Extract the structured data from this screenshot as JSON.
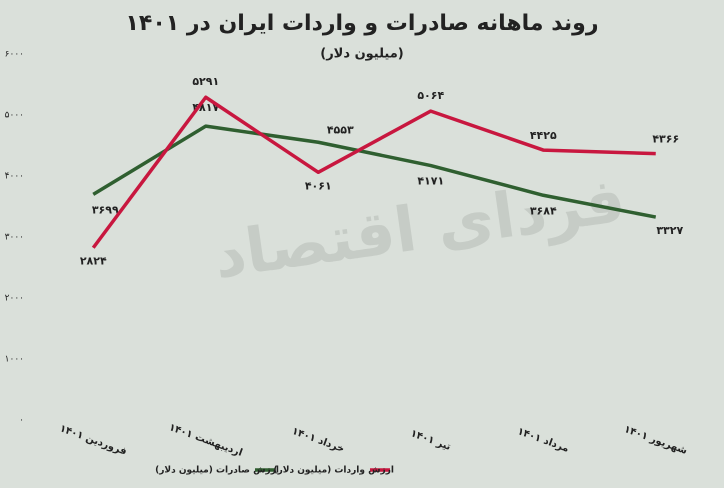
{
  "chart_data": {
    "type": "line",
    "title": "روند ماهانه صادرات و واردات ایران در ۱۴۰۱",
    "subtitle": "(میلیون دلار)",
    "watermark": "فردای اقتصاد",
    "categories": [
      "فروردین ۱۴۰۱",
      "اردیبهشت ۱۴۰۱",
      "خرداد ۱۴۰۱",
      "تیر ۱۴۰۱",
      "مرداد ۱۴۰۱",
      "شهریور ۱۴۰۱"
    ],
    "series": [
      {
        "name": "ارزش صادرات (میلیون دلار)",
        "color": "#2f5f30",
        "values": [
          3699,
          4817,
          4553,
          4171,
          3684,
          3327
        ],
        "value_labels": [
          "۳۶۹۹",
          "۴۸۱۷",
          "۴۵۵۳",
          "۴۱۷۱",
          "۳۶۸۴",
          "۳۳۲۷"
        ]
      },
      {
        "name": "ارزش واردات (میلیون دلار)",
        "color": "#c8173f",
        "values": [
          2824,
          5291,
          4061,
          5064,
          4425,
          4366
        ],
        "value_labels": [
          "۲۸۲۴",
          "۵۲۹۱",
          "۴۰۶۱",
          "۵۰۶۴",
          "۴۴۲۵",
          "۴۳۶۶"
        ]
      }
    ],
    "ylim": [
      0,
      6000
    ],
    "yticks": [
      {
        "value": 0,
        "label": "۰"
      },
      {
        "value": 1000,
        "label": "۱۰۰۰"
      },
      {
        "value": 2000,
        "label": "۲۰۰۰"
      },
      {
        "value": 3000,
        "label": "۳۰۰۰"
      },
      {
        "value": 4000,
        "label": "۴۰۰۰"
      },
      {
        "value": 5000,
        "label": "۵۰۰۰"
      },
      {
        "value": 6000,
        "label": "۶۰۰۰"
      }
    ],
    "grid": false,
    "legend": "bottom"
  }
}
